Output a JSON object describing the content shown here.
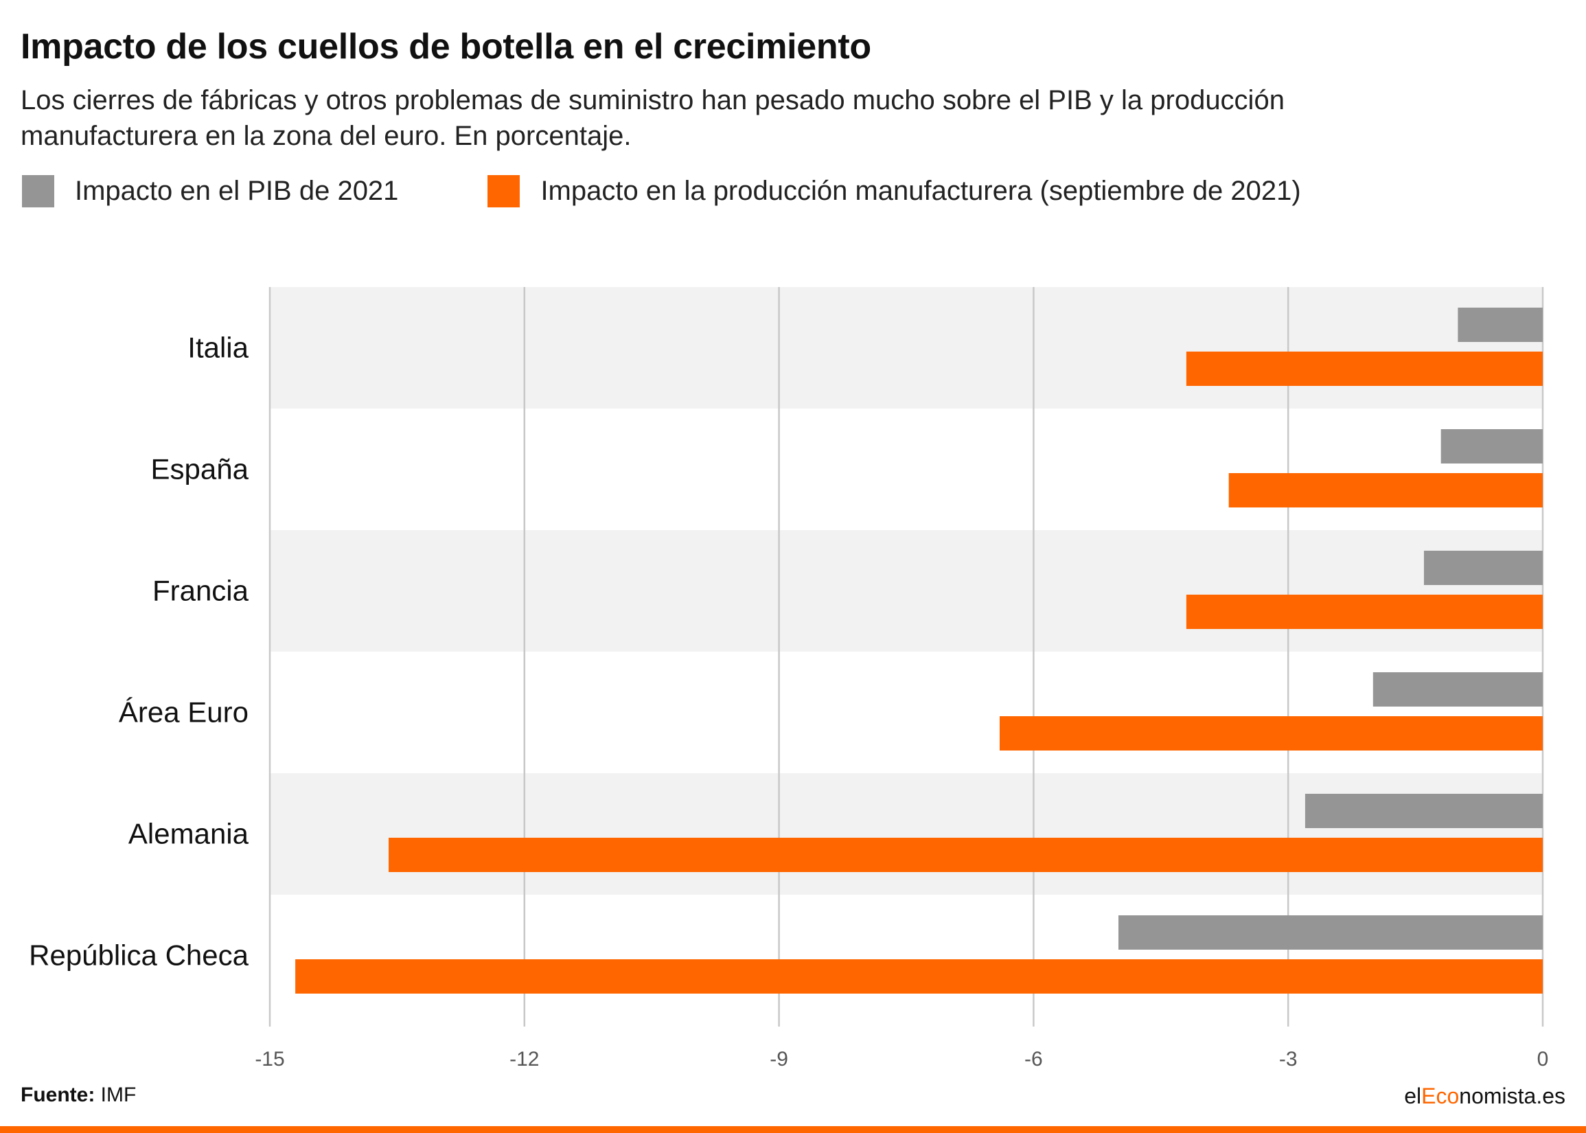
{
  "title": "Impacto de los cuellos de botella en el crecimiento",
  "subtitle": "Los cierres de fábricas y otros problemas de suministro han pesado mucho sobre el PIB y la producción manufacturera en la zona del euro. En porcentaje.",
  "source": {
    "label": "Fuente:",
    "value": "IMF"
  },
  "brand": {
    "prefix": "el",
    "accent": "Eco",
    "suffix": "nomista.es"
  },
  "colors": {
    "gdp": "#959595",
    "manufacturing": "#ff6600",
    "band": "#f2f2f2",
    "grid": "#c8c8c8"
  },
  "chart_data": {
    "type": "bar",
    "orientation": "horizontal",
    "categories": [
      "Italia",
      "España",
      "Francia",
      "Área Euro",
      "Alemania",
      "República Checa"
    ],
    "series": [
      {
        "name": "Impacto en el PIB de 2021",
        "values": [
          -1.0,
          -1.2,
          -1.4,
          -2.0,
          -2.8,
          -5.0
        ]
      },
      {
        "name": "Impacto en la producción manufacturera (septiembre de 2021)",
        "values": [
          -4.2,
          -3.7,
          -4.2,
          -6.4,
          -13.6,
          -14.7
        ]
      }
    ],
    "xlim": [
      -15,
      0
    ],
    "xticks": [
      -15,
      -12,
      -9,
      -6,
      -3,
      0
    ],
    "xlabel": "",
    "ylabel": "",
    "grid": true,
    "legend_position": "top-left"
  }
}
